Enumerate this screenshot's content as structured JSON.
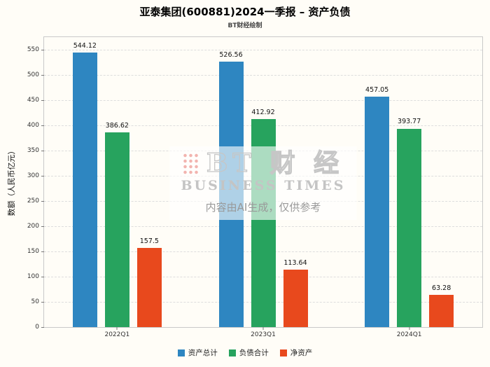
{
  "watermark": {
    "logo_text": "BT 财 经",
    "sub": "BUSINESS TIMES",
    "disclaimer": "内容由AI生成，仅供参考"
  },
  "chart_data": {
    "type": "bar",
    "title": "亚泰集团(600881)2024一季报 – 资产负债",
    "subtitle": "BT财经绘制",
    "categories": [
      "2022Q1",
      "2023Q1",
      "2024Q1"
    ],
    "series": [
      {
        "name": "资产总计",
        "color": "#2E86C1",
        "values": [
          544.12,
          526.56,
          457.05
        ]
      },
      {
        "name": "负债合计",
        "color": "#27A35E",
        "values": [
          386.62,
          412.92,
          393.77
        ]
      },
      {
        "name": "净资产",
        "color": "#E8491D",
        "values": [
          157.5,
          113.64,
          63.28
        ]
      }
    ],
    "ylabel": "数额（人民币亿元）",
    "ylim": [
      0,
      575
    ],
    "yticks": [
      0,
      50,
      100,
      150,
      200,
      250,
      300,
      350,
      400,
      450,
      500,
      550
    ],
    "grid": true,
    "legend_position": "bottom"
  }
}
